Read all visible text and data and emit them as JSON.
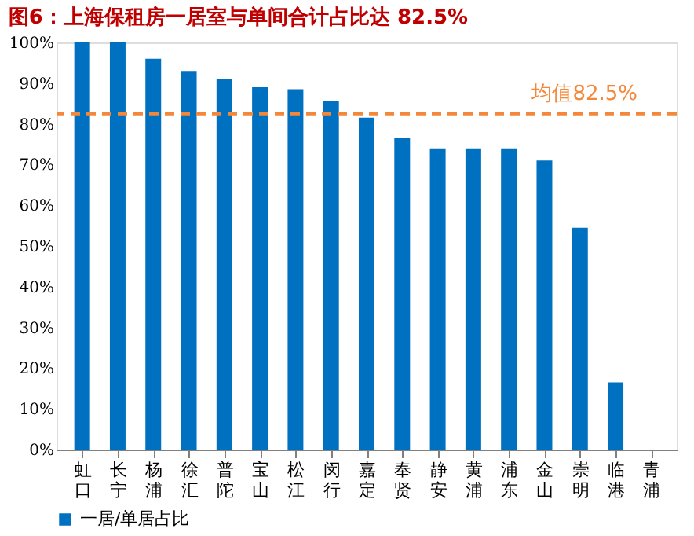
{
  "chart_data": {
    "type": "bar",
    "title": "图6：上海保租房一居室与单间合计占比达 82.5%",
    "categories": [
      "虹口",
      "长宁",
      "杨浦",
      "徐汇",
      "普陀",
      "宝山",
      "松江",
      "闵行",
      "嘉定",
      "奉贤",
      "静安",
      "黄浦",
      "浦东",
      "金山",
      "崇明",
      "临港",
      "青浦"
    ],
    "series": [
      {
        "name": "一居/单居占比",
        "color": "#0070c0",
        "values": [
          100,
          100,
          96,
          93,
          91,
          89,
          88.5,
          85.5,
          81.5,
          76.5,
          74,
          74,
          74,
          71,
          54.5,
          16.5,
          null
        ]
      }
    ],
    "ylim": [
      0,
      100
    ],
    "yticks": [
      {
        "value": 0,
        "label": "0%"
      },
      {
        "value": 10,
        "label": "10%"
      },
      {
        "value": 20,
        "label": "20%"
      },
      {
        "value": 30,
        "label": "30%"
      },
      {
        "value": 40,
        "label": "40%"
      },
      {
        "value": 50,
        "label": "50%"
      },
      {
        "value": 60,
        "label": "60%"
      },
      {
        "value": 70,
        "label": "70%"
      },
      {
        "value": 80,
        "label": "80%"
      },
      {
        "value": 90,
        "label": "90%"
      },
      {
        "value": 100,
        "label": "100%"
      }
    ],
    "ref_lines": [
      {
        "axis": "y",
        "value": 82.5,
        "label": "均值82.5%",
        "color": "#f4883a",
        "line_style": "dashed"
      }
    ],
    "legend": "bottom",
    "grid": false
  }
}
